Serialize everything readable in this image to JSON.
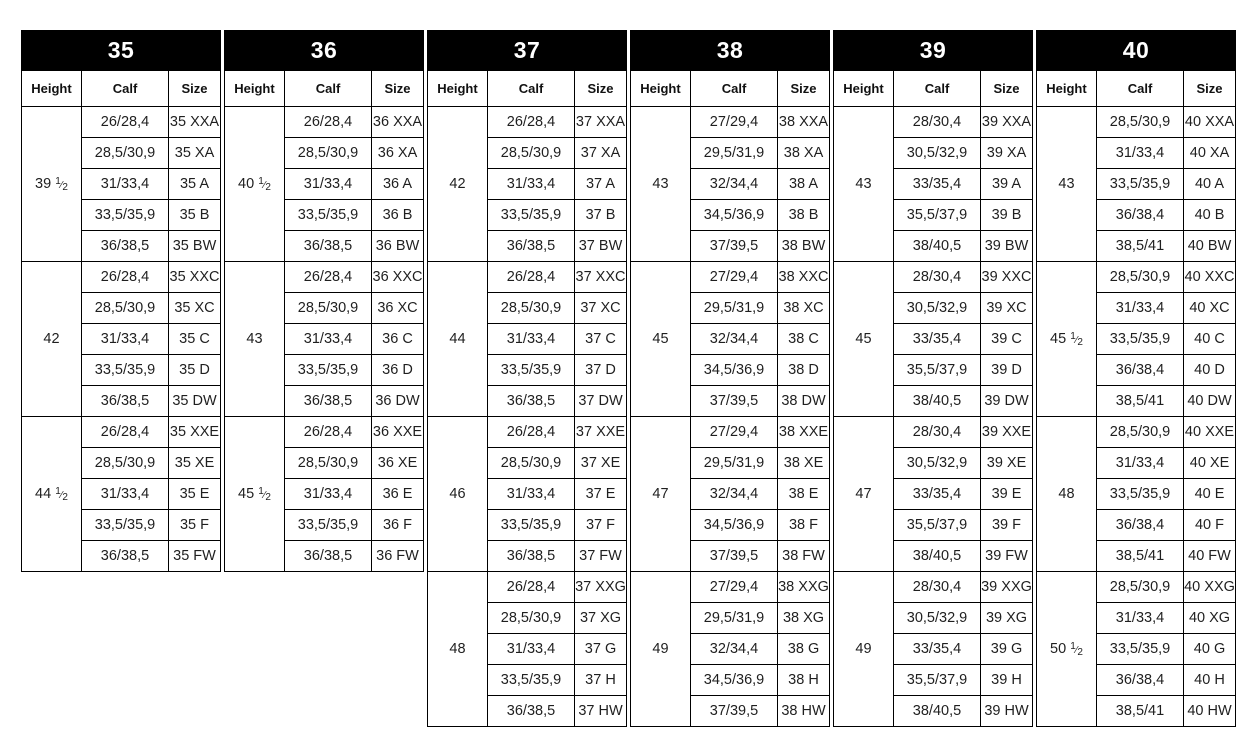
{
  "page": {
    "background_color": "#ffffff",
    "header_bg_color": "#000000",
    "header_text_color": "#ffffff",
    "border_color": "#000000",
    "cell_text_color": "#1f1f1f"
  },
  "table": {
    "column_headers": [
      "Height",
      "Calf",
      "Size"
    ],
    "groups": [
      {
        "size": "35",
        "blocks": [
          {
            "height": "39 ½",
            "rows": [
              {
                "calf": "26/28,4",
                "size": "35 XXA"
              },
              {
                "calf": "28,5/30,9",
                "size": "35 XA"
              },
              {
                "calf": "31/33,4",
                "size": "35 A"
              },
              {
                "calf": "33,5/35,9",
                "size": "35 B"
              },
              {
                "calf": "36/38,5",
                "size": "35 BW"
              }
            ]
          },
          {
            "height": "42",
            "rows": [
              {
                "calf": "26/28,4",
                "size": "35 XXC"
              },
              {
                "calf": "28,5/30,9",
                "size": "35 XC"
              },
              {
                "calf": "31/33,4",
                "size": "35 C"
              },
              {
                "calf": "33,5/35,9",
                "size": "35 D"
              },
              {
                "calf": "36/38,5",
                "size": "35 DW"
              }
            ]
          },
          {
            "height": "44 ½",
            "rows": [
              {
                "calf": "26/28,4",
                "size": "35 XXE"
              },
              {
                "calf": "28,5/30,9",
                "size": "35 XE"
              },
              {
                "calf": "31/33,4",
                "size": "35 E"
              },
              {
                "calf": "33,5/35,9",
                "size": "35 F"
              },
              {
                "calf": "36/38,5",
                "size": "35 FW"
              }
            ]
          }
        ]
      },
      {
        "size": "36",
        "blocks": [
          {
            "height": "40 ½",
            "rows": [
              {
                "calf": "26/28,4",
                "size": "36 XXA"
              },
              {
                "calf": "28,5/30,9",
                "size": "36 XA"
              },
              {
                "calf": "31/33,4",
                "size": "36 A"
              },
              {
                "calf": "33,5/35,9",
                "size": "36 B"
              },
              {
                "calf": "36/38,5",
                "size": "36 BW"
              }
            ]
          },
          {
            "height": "43",
            "rows": [
              {
                "calf": "26/28,4",
                "size": "36 XXC"
              },
              {
                "calf": "28,5/30,9",
                "size": "36 XC"
              },
              {
                "calf": "31/33,4",
                "size": "36 C"
              },
              {
                "calf": "33,5/35,9",
                "size": "36 D"
              },
              {
                "calf": "36/38,5",
                "size": "36 DW"
              }
            ]
          },
          {
            "height": "45 ½",
            "rows": [
              {
                "calf": "26/28,4",
                "size": "36 XXE"
              },
              {
                "calf": "28,5/30,9",
                "size": "36 XE"
              },
              {
                "calf": "31/33,4",
                "size": "36 E"
              },
              {
                "calf": "33,5/35,9",
                "size": "36 F"
              },
              {
                "calf": "36/38,5",
                "size": "36 FW"
              }
            ]
          }
        ]
      },
      {
        "size": "37",
        "blocks": [
          {
            "height": "42",
            "rows": [
              {
                "calf": "26/28,4",
                "size": "37 XXA"
              },
              {
                "calf": "28,5/30,9",
                "size": "37 XA"
              },
              {
                "calf": "31/33,4",
                "size": "37 A"
              },
              {
                "calf": "33,5/35,9",
                "size": "37 B"
              },
              {
                "calf": "36/38,5",
                "size": "37 BW"
              }
            ]
          },
          {
            "height": "44",
            "rows": [
              {
                "calf": "26/28,4",
                "size": "37 XXC"
              },
              {
                "calf": "28,5/30,9",
                "size": "37 XC"
              },
              {
                "calf": "31/33,4",
                "size": "37 C"
              },
              {
                "calf": "33,5/35,9",
                "size": "37 D"
              },
              {
                "calf": "36/38,5",
                "size": "37 DW"
              }
            ]
          },
          {
            "height": "46",
            "rows": [
              {
                "calf": "26/28,4",
                "size": "37 XXE"
              },
              {
                "calf": "28,5/30,9",
                "size": "37 XE"
              },
              {
                "calf": "31/33,4",
                "size": "37 E"
              },
              {
                "calf": "33,5/35,9",
                "size": "37 F"
              },
              {
                "calf": "36/38,5",
                "size": "37 FW"
              }
            ]
          },
          {
            "height": "48",
            "rows": [
              {
                "calf": "26/28,4",
                "size": "37 XXG"
              },
              {
                "calf": "28,5/30,9",
                "size": "37 XG"
              },
              {
                "calf": "31/33,4",
                "size": "37 G"
              },
              {
                "calf": "33,5/35,9",
                "size": "37 H"
              },
              {
                "calf": "36/38,5",
                "size": "37 HW"
              }
            ]
          }
        ]
      },
      {
        "size": "38",
        "blocks": [
          {
            "height": "43",
            "rows": [
              {
                "calf": "27/29,4",
                "size": "38 XXA"
              },
              {
                "calf": "29,5/31,9",
                "size": "38 XA"
              },
              {
                "calf": "32/34,4",
                "size": "38 A"
              },
              {
                "calf": "34,5/36,9",
                "size": "38 B"
              },
              {
                "calf": "37/39,5",
                "size": "38 BW"
              }
            ]
          },
          {
            "height": "45",
            "rows": [
              {
                "calf": "27/29,4",
                "size": "38 XXC"
              },
              {
                "calf": "29,5/31,9",
                "size": "38 XC"
              },
              {
                "calf": "32/34,4",
                "size": "38 C"
              },
              {
                "calf": "34,5/36,9",
                "size": "38 D"
              },
              {
                "calf": "37/39,5",
                "size": "38 DW"
              }
            ]
          },
          {
            "height": "47",
            "rows": [
              {
                "calf": "27/29,4",
                "size": "38 XXE"
              },
              {
                "calf": "29,5/31,9",
                "size": "38 XE"
              },
              {
                "calf": "32/34,4",
                "size": "38 E"
              },
              {
                "calf": "34,5/36,9",
                "size": "38 F"
              },
              {
                "calf": "37/39,5",
                "size": "38 FW"
              }
            ]
          },
          {
            "height": "49",
            "rows": [
              {
                "calf": "27/29,4",
                "size": "38 XXG"
              },
              {
                "calf": "29,5/31,9",
                "size": "38 XG"
              },
              {
                "calf": "32/34,4",
                "size": "38 G"
              },
              {
                "calf": "34,5/36,9",
                "size": "38 H"
              },
              {
                "calf": "37/39,5",
                "size": "38 HW"
              }
            ]
          }
        ]
      },
      {
        "size": "39",
        "blocks": [
          {
            "height": "43",
            "rows": [
              {
                "calf": "28/30,4",
                "size": "39 XXA"
              },
              {
                "calf": "30,5/32,9",
                "size": "39 XA"
              },
              {
                "calf": "33/35,4",
                "size": "39 A"
              },
              {
                "calf": "35,5/37,9",
                "size": "39 B"
              },
              {
                "calf": "38/40,5",
                "size": "39 BW"
              }
            ]
          },
          {
            "height": "45",
            "rows": [
              {
                "calf": "28/30,4",
                "size": "39 XXC"
              },
              {
                "calf": "30,5/32,9",
                "size": "39 XC"
              },
              {
                "calf": "33/35,4",
                "size": "39 C"
              },
              {
                "calf": "35,5/37,9",
                "size": "39 D"
              },
              {
                "calf": "38/40,5",
                "size": "39 DW"
              }
            ]
          },
          {
            "height": "47",
            "rows": [
              {
                "calf": "28/30,4",
                "size": "39 XXE"
              },
              {
                "calf": "30,5/32,9",
                "size": "39 XE"
              },
              {
                "calf": "33/35,4",
                "size": "39 E"
              },
              {
                "calf": "35,5/37,9",
                "size": "39 F"
              },
              {
                "calf": "38/40,5",
                "size": "39 FW"
              }
            ]
          },
          {
            "height": "49",
            "rows": [
              {
                "calf": "28/30,4",
                "size": "39 XXG"
              },
              {
                "calf": "30,5/32,9",
                "size": "39 XG"
              },
              {
                "calf": "33/35,4",
                "size": "39 G"
              },
              {
                "calf": "35,5/37,9",
                "size": "39 H"
              },
              {
                "calf": "38/40,5",
                "size": "39 HW"
              }
            ]
          }
        ]
      },
      {
        "size": "40",
        "blocks": [
          {
            "height": "43",
            "rows": [
              {
                "calf": "28,5/30,9",
                "size": "40 XXA"
              },
              {
                "calf": "31/33,4",
                "size": "40 XA"
              },
              {
                "calf": "33,5/35,9",
                "size": "40 A"
              },
              {
                "calf": "36/38,4",
                "size": "40 B"
              },
              {
                "calf": "38,5/41",
                "size": "40 BW"
              }
            ]
          },
          {
            "height": "45 ½",
            "rows": [
              {
                "calf": "28,5/30,9",
                "size": "40 XXC"
              },
              {
                "calf": "31/33,4",
                "size": "40 XC"
              },
              {
                "calf": "33,5/35,9",
                "size": "40 C"
              },
              {
                "calf": "36/38,4",
                "size": "40 D"
              },
              {
                "calf": "38,5/41",
                "size": "40 DW"
              }
            ]
          },
          {
            "height": "48",
            "rows": [
              {
                "calf": "28,5/30,9",
                "size": "40 XXE"
              },
              {
                "calf": "31/33,4",
                "size": "40 XE"
              },
              {
                "calf": "33,5/35,9",
                "size": "40 E"
              },
              {
                "calf": "36/38,4",
                "size": "40 F"
              },
              {
                "calf": "38,5/41",
                "size": "40 FW"
              }
            ]
          },
          {
            "height": "50 ½",
            "rows": [
              {
                "calf": "28,5/30,9",
                "size": "40 XXG"
              },
              {
                "calf": "31/33,4",
                "size": "40 XG"
              },
              {
                "calf": "33,5/35,9",
                "size": "40 G"
              },
              {
                "calf": "36/38,4",
                "size": "40 H"
              },
              {
                "calf": "38,5/41",
                "size": "40 HW"
              }
            ]
          }
        ]
      }
    ]
  }
}
